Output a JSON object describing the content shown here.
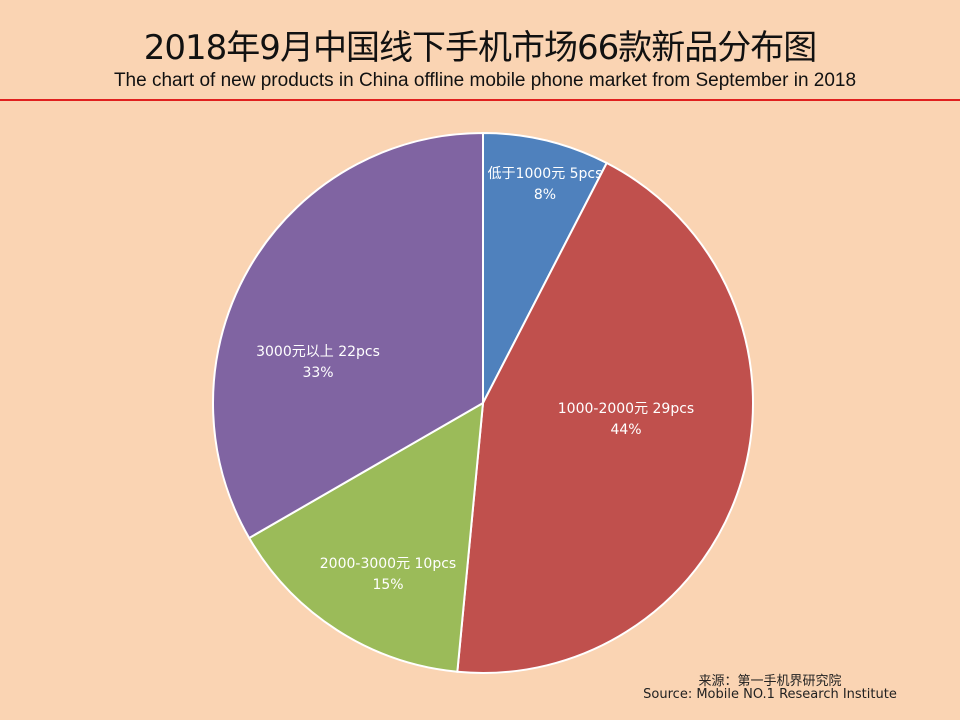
{
  "chart_data": {
    "type": "pie",
    "title": "2018年9月中国线下手机市场66款新品分布图",
    "subtitle": "The chart of new products in China offline mobile phone market from  September in 2018",
    "slices": [
      {
        "label": "低于1000元  5pcs",
        "value": 5,
        "percent": "8%",
        "color": "#4f81bd"
      },
      {
        "label": "1000-2000元  29pcs",
        "value": 29,
        "percent": "44%",
        "color": "#c0504d"
      },
      {
        "label": "2000-3000元  10pcs",
        "value": 10,
        "percent": "15%",
        "color": "#9bbb59"
      },
      {
        "label": "3000元以上  22pcs",
        "value": 22,
        "percent": "33%",
        "color": "#8064a2"
      }
    ],
    "start_angle": "12 o'clock, clockwise"
  },
  "source": {
    "cn": "来源：第一手机界研究院",
    "en": "Source: Mobile NO.1 Research Institute"
  }
}
